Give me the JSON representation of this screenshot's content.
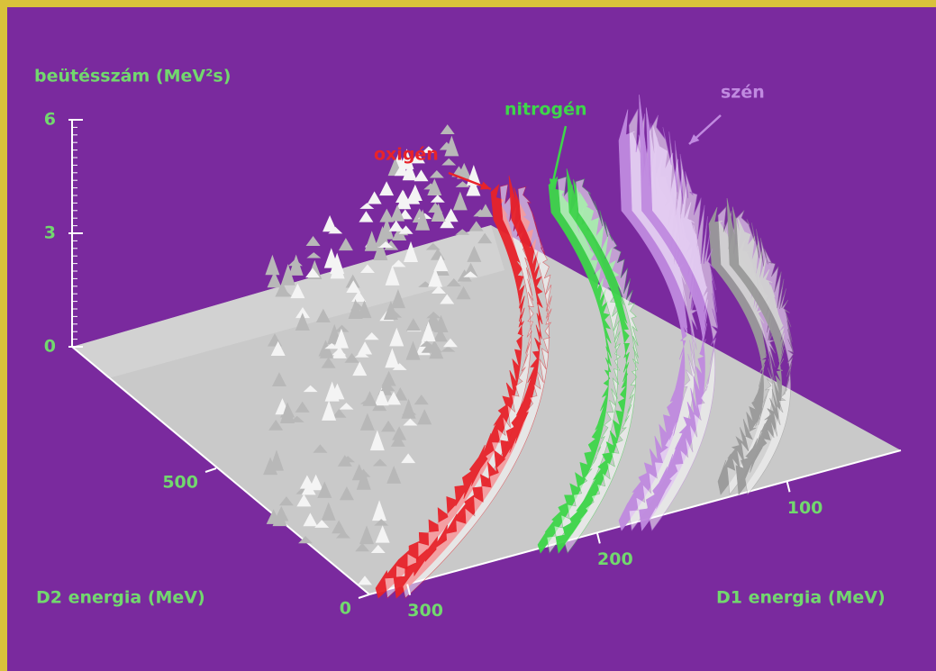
{
  "chart_data": {
    "type": "surface3d",
    "z_label": "beütésszám (MeV²s)",
    "x_label": "D1 energia (MeV)",
    "y_label": "D2 energia (MeV)",
    "xticks": [
      100,
      200,
      300
    ],
    "xlim": [
      320,
      40
    ],
    "yticks": [
      0,
      500
    ],
    "ylim": [
      0,
      1000
    ],
    "zticks": [
      0,
      3,
      6
    ],
    "zlim": [
      0,
      6
    ],
    "annotations": [
      {
        "text": "oxigén",
        "color": "#e8232a"
      },
      {
        "text": "nitrogén",
        "color": "#3ed64a"
      },
      {
        "text": "szén",
        "color": "#c08ae0"
      }
    ]
  }
}
